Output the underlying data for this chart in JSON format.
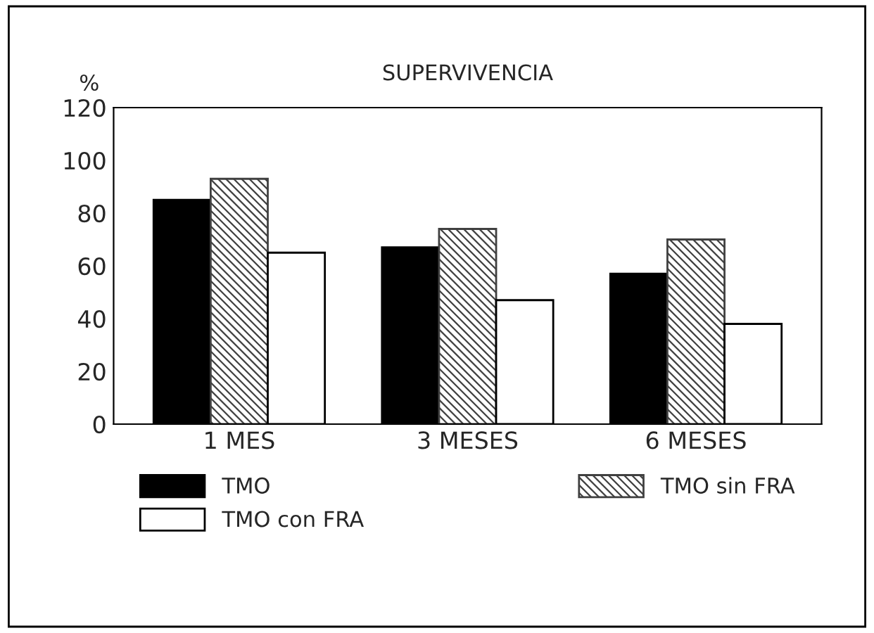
{
  "chart_data": {
    "type": "bar",
    "title": "SUPERVIVENCIA",
    "ylabel": "%",
    "categories": [
      "1 MES",
      "3 MESES",
      "6 MESES"
    ],
    "series": [
      {
        "name": "TMO",
        "color": "#000000",
        "values": [
          85,
          67,
          57
        ]
      },
      {
        "name": "TMO sin FRA",
        "color": "#404040",
        "values": [
          93,
          74,
          70
        ]
      },
      {
        "name": "TMO con FRA",
        "color": "#ffffff",
        "values": [
          65,
          47,
          38
        ]
      }
    ],
    "ylim": [
      0,
      120
    ],
    "yticks": [
      0,
      20,
      40,
      60,
      80,
      100,
      120
    ],
    "grid": false,
    "legend": "bottom"
  }
}
